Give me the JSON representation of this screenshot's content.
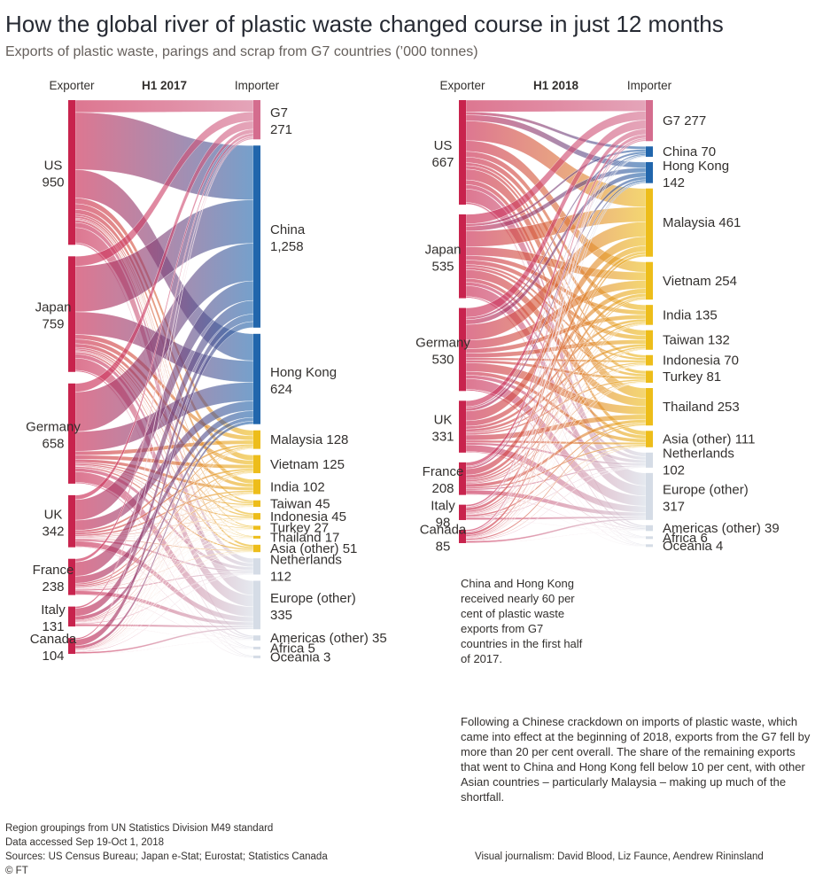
{
  "title": "How the global river of plastic waste changed course in just 12 months",
  "subtitle": "Exports of plastic waste, parings and scrap from G7 countries (’000 tonnes)",
  "panels": [
    {
      "headers": {
        "exporter": "Exporter",
        "period": "H1 2017",
        "importer": "Importer"
      },
      "exporters": [
        {
          "name": "US",
          "value": 950,
          "label": "950"
        },
        {
          "name": "Japan",
          "value": 759,
          "label": "759"
        },
        {
          "name": "Germany",
          "value": 658,
          "label": "658"
        },
        {
          "name": "UK",
          "value": 342,
          "label": "342"
        },
        {
          "name": "France",
          "value": 238,
          "label": "238"
        },
        {
          "name": "Italy",
          "value": 131,
          "label": "131"
        },
        {
          "name": "Canada",
          "value": 104,
          "label": "104"
        }
      ],
      "importers": [
        {
          "name": "G7",
          "value": 271,
          "label": "271",
          "color": "#d46d8e",
          "inline": false
        },
        {
          "name": "China",
          "value": 1258,
          "label": "1,258",
          "color": "#2166ac",
          "inline": false
        },
        {
          "name": "Hong Kong",
          "value": 624,
          "label": "624",
          "color": "#2166ac",
          "inline": false
        },
        {
          "name": "Malaysia",
          "value": 128,
          "label": "128",
          "color": "#edbd1a",
          "inline": true
        },
        {
          "name": "Vietnam",
          "value": 125,
          "label": "125",
          "color": "#edbd1a",
          "inline": true
        },
        {
          "name": "India",
          "value": 102,
          "label": "102",
          "color": "#edbd1a",
          "inline": true
        },
        {
          "name": "Taiwan",
          "value": 45,
          "label": "45",
          "color": "#edbd1a",
          "inline": true
        },
        {
          "name": "Indonesia",
          "value": 45,
          "label": "45",
          "color": "#edbd1a",
          "inline": true
        },
        {
          "name": "Turkey",
          "value": 27,
          "label": "27",
          "color": "#edbd1a",
          "inline": true
        },
        {
          "name": "Thailand",
          "value": 17,
          "label": "17",
          "color": "#edbd1a",
          "inline": true
        },
        {
          "name": "Asia (other)",
          "value": 51,
          "label": "51",
          "color": "#edbd1a",
          "inline": true
        },
        {
          "name": "Netherlands",
          "value": 112,
          "label": "112",
          "color": "#d5dce6",
          "inline": false
        },
        {
          "name": "Europe (other)",
          "value": 335,
          "label": "335",
          "color": "#d5dce6",
          "inline": false
        },
        {
          "name": "Americas (other)",
          "value": 35,
          "label": "35",
          "color": "#d5dce6",
          "inline": true
        },
        {
          "name": "Africa",
          "value": 5,
          "label": "5",
          "color": "#d5dce6",
          "inline": true
        },
        {
          "name": "Oceania",
          "value": 3,
          "label": "3",
          "color": "#d5dce6",
          "inline": true
        }
      ]
    },
    {
      "headers": {
        "exporter": "Exporter",
        "period": "H1 2018",
        "importer": "Importer"
      },
      "exporters": [
        {
          "name": "US",
          "value": 667,
          "label": "667"
        },
        {
          "name": "Japan",
          "value": 535,
          "label": "535"
        },
        {
          "name": "Germany",
          "value": 530,
          "label": "530"
        },
        {
          "name": "UK",
          "value": 331,
          "label": "331"
        },
        {
          "name": "France",
          "value": 208,
          "label": "208"
        },
        {
          "name": "Italy",
          "value": 98,
          "label": "98"
        },
        {
          "name": "Canada",
          "value": 85,
          "label": "85"
        }
      ],
      "importers": [
        {
          "name": "G7",
          "value": 277,
          "label": "277",
          "color": "#d46d8e",
          "inline": true
        },
        {
          "name": "China",
          "value": 70,
          "label": "70",
          "color": "#2166ac",
          "inline": true
        },
        {
          "name": "Hong Kong",
          "value": 142,
          "label": "142",
          "color": "#2166ac",
          "inline": false
        },
        {
          "name": "Malaysia",
          "value": 461,
          "label": "461",
          "color": "#edbd1a",
          "inline": true
        },
        {
          "name": "Vietnam",
          "value": 254,
          "label": "254",
          "color": "#edbd1a",
          "inline": true
        },
        {
          "name": "India",
          "value": 135,
          "label": "135",
          "color": "#edbd1a",
          "inline": true
        },
        {
          "name": "Taiwan",
          "value": 132,
          "label": "132",
          "color": "#edbd1a",
          "inline": true
        },
        {
          "name": "Indonesia",
          "value": 70,
          "label": "70",
          "color": "#edbd1a",
          "inline": true
        },
        {
          "name": "Turkey",
          "value": 81,
          "label": "81",
          "color": "#edbd1a",
          "inline": true
        },
        {
          "name": "Thailand",
          "value": 253,
          "label": "253",
          "color": "#edbd1a",
          "inline": true
        },
        {
          "name": "Asia (other)",
          "value": 111,
          "label": "111",
          "color": "#edbd1a",
          "inline": true
        },
        {
          "name": "Netherlands",
          "value": 102,
          "label": "102",
          "color": "#d5dce6",
          "inline": false
        },
        {
          "name": "Europe (other)",
          "value": 317,
          "label": "317",
          "color": "#d5dce6",
          "inline": false
        },
        {
          "name": "Americas (other)",
          "value": 39,
          "label": "39",
          "color": "#d5dce6",
          "inline": true
        },
        {
          "name": "Africa",
          "value": 6,
          "label": "6",
          "color": "#d5dce6",
          "inline": true
        },
        {
          "name": "Oceania",
          "value": 4,
          "label": "4",
          "color": "#d5dce6",
          "inline": true
        }
      ]
    }
  ],
  "notes": {
    "china_hk": "China and Hong Kong received nearly 60 per cent of plastic waste exports from G7 countries in the first half of 2017.",
    "crackdown": "Following a Chinese crackdown on imports of plastic waste, which came into effect at the beginning of 2018, exports from the G7 fell by more than 20 per cent overall. The share of the remaining exports that went to China and Hong Kong fell below 10 per cent, with other Asian countries – particularly Malaysia – making up much of the shortfall."
  },
  "footer": {
    "line1": "Region groupings from UN Statistics Division M49 standard",
    "line2": "Data accessed Sep 19-Oct 1, 2018",
    "line3": "Sources: US Census Bureau; Japan e-Stat; Eurostat; Statistics Canada",
    "line4": "© FT",
    "credits": "Visual journalism: David Blood, Liz Faunce, Aendrew Rininsland"
  },
  "colors": {
    "exporter_bar": "#c8234d",
    "text": "#33302e"
  }
}
